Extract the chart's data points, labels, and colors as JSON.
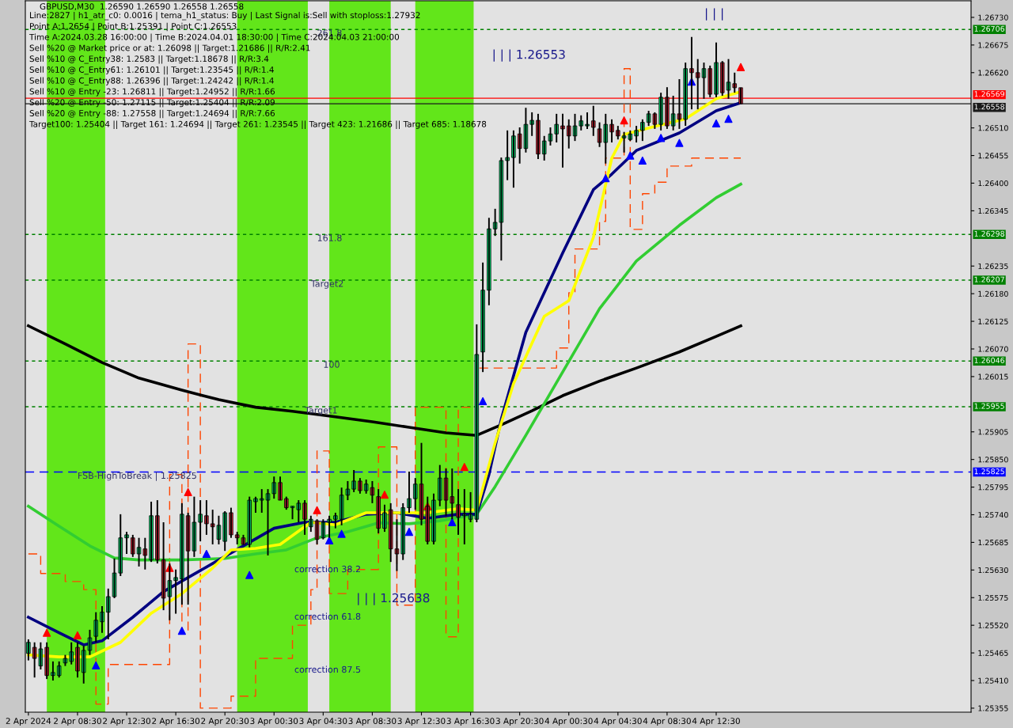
{
  "chart_data": {
    "type": "candlestick",
    "title": "GBPUSD,M30  1.26590 1.26590 1.26558 1.26558",
    "subtitle": "Line:2827 | h1_atr_c0: 0.0016 | tema_h1_status: Buy | Last Signal is:Sell with stoploss:1.27932\nPoint A:1.2654 | Point B:1.25391 | Point C:1.26553\nTime A:2024.03.28 16:00:00 | Time B:2024.04.01 18:30:00 | Time C:2024.04.03 21:00:00\nSell %20 @ Market price or at: 1.26098 || Target:1.21686 || R/R:2.41\nSell %10 @ C_Entry38: 1.2583 || Target:1.18678 || R/R:3.4\nSell %10 @ C_Entry61: 1.26101 || Target:1.23545 || R/R:1.4\nSell %10 @ C_Entry88: 1.26396 || Target:1.24242 || R/R:1.4\nSell %10 @ Entry -23: 1.26811 || Target:1.24952 || R/R:1.66\nSell %20 @ Entry -50: 1.27115 || Target:1.25404 || R/R:2.09\nSell %20 @ Entry -88: 1.27558 || Target:1.24694 || R/R:7.66\nTarget100: 1.25404 || Target 161: 1.24694 || Target 261: 1.23545 || Target 423: 1.21686 || Target 685: 1.18678",
    "x": [
      "2024-04-02T04:30",
      "2024-04-02T05:00",
      "2024-04-02T05:30",
      "2024-04-02T06:00",
      "2024-04-02T06:30",
      "2024-04-02T07:00",
      "2024-04-02T07:30",
      "2024-04-02T08:00",
      "2024-04-02T08:30",
      "2024-04-02T09:00",
      "2024-04-02T09:30",
      "2024-04-02T10:00",
      "2024-04-02T10:30",
      "2024-04-02T11:00",
      "2024-04-02T11:30",
      "2024-04-02T12:00",
      "2024-04-02T12:30",
      "2024-04-02T13:00",
      "2024-04-02T13:30",
      "2024-04-02T14:00",
      "2024-04-02T14:30",
      "2024-04-02T15:00",
      "2024-04-02T15:30",
      "2024-04-02T16:00",
      "2024-04-02T16:30",
      "2024-04-02T17:00",
      "2024-04-02T17:30",
      "2024-04-02T18:00",
      "2024-04-02T18:30",
      "2024-04-02T19:00",
      "2024-04-02T19:30",
      "2024-04-02T20:00",
      "2024-04-02T20:30",
      "2024-04-02T21:00",
      "2024-04-02T21:30",
      "2024-04-02T22:00",
      "2024-04-02T22:30",
      "2024-04-02T23:00",
      "2024-04-02T23:30",
      "2024-04-03T00:00",
      "2024-04-03T00:30",
      "2024-04-03T01:00",
      "2024-04-03T01:30",
      "2024-04-03T02:00",
      "2024-04-03T02:30",
      "2024-04-03T03:00",
      "2024-04-03T03:30",
      "2024-04-03T04:00",
      "2024-04-03T04:30",
      "2024-04-03T05:00",
      "2024-04-03T05:30",
      "2024-04-03T06:00",
      "2024-04-03T06:30",
      "2024-04-03T07:00",
      "2024-04-03T07:30",
      "2024-04-03T08:00",
      "2024-04-03T08:30",
      "2024-04-03T09:00",
      "2024-04-03T09:30",
      "2024-04-03T10:00",
      "2024-04-03T10:30",
      "2024-04-03T11:00",
      "2024-04-03T11:30",
      "2024-04-03T12:00",
      "2024-04-03T12:30",
      "2024-04-03T13:00",
      "2024-04-03T13:30",
      "2024-04-03T14:00",
      "2024-04-03T14:30",
      "2024-04-03T15:00",
      "2024-04-03T15:30",
      "2024-04-03T16:00",
      "2024-04-03T16:30",
      "2024-04-03T17:00",
      "2024-04-03T17:30",
      "2024-04-03T18:00",
      "2024-04-03T18:30",
      "2024-04-03T19:00",
      "2024-04-03T19:30",
      "2024-04-03T20:00",
      "2024-04-03T20:30",
      "2024-04-03T21:00",
      "2024-04-03T21:30",
      "2024-04-03T22:00",
      "2024-04-03T22:30",
      "2024-04-03T23:00",
      "2024-04-03T23:30",
      "2024-04-04T00:00",
      "2024-04-04T00:30",
      "2024-04-04T01:00",
      "2024-04-04T01:30",
      "2024-04-04T02:00",
      "2024-04-04T02:30",
      "2024-04-04T03:00",
      "2024-04-04T03:30",
      "2024-04-04T04:00",
      "2024-04-04T04:30",
      "2024-04-04T05:00",
      "2024-04-04T05:30",
      "2024-04-04T06:00",
      "2024-04-04T06:30",
      "2024-04-04T07:00",
      "2024-04-04T07:30",
      "2024-04-04T08:00",
      "2024-04-04T08:30",
      "2024-04-04T09:00",
      "2024-04-04T09:30",
      "2024-04-04T10:00",
      "2024-04-04T10:30",
      "2024-04-04T11:00",
      "2024-04-04T11:30",
      "2024-04-04T12:00",
      "2024-04-04T12:30",
      "2024-04-04T13:00",
      "2024-04-04T13:30",
      "2024-04-04T14:00",
      "2024-04-04T14:30"
    ],
    "ohlc": [
      [
        1.25464,
        1.25492,
        1.2545,
        1.25486
      ],
      [
        1.25476,
        1.25486,
        1.25416,
        1.25454
      ],
      [
        1.25439,
        1.25486,
        1.25432,
        1.25473
      ],
      [
        1.25476,
        1.25486,
        1.25413,
        1.2542
      ],
      [
        1.2542,
        1.25448,
        1.2541,
        1.25426
      ],
      [
        1.2542,
        1.25448,
        1.25416,
        1.25439
      ],
      [
        1.25445,
        1.25461,
        1.25439,
        1.25454
      ],
      [
        1.25448,
        1.25486,
        1.25442,
        1.25467
      ],
      [
        1.25476,
        1.25486,
        1.25416,
        1.25429
      ],
      [
        1.25426,
        1.25479,
        1.25404,
        1.2547
      ],
      [
        1.2547,
        1.25511,
        1.25461,
        1.25495
      ],
      [
        1.25498,
        1.25546,
        1.25486,
        1.2553
      ],
      [
        1.25527,
        1.25558,
        1.25505,
        1.25546
      ],
      [
        1.25546,
        1.25593,
        1.25492,
        1.25577
      ],
      [
        1.25577,
        1.25653,
        1.25574,
        1.25624
      ],
      [
        1.25624,
        1.25741,
        1.25618,
        1.25694
      ],
      [
        1.25694,
        1.25706,
        1.25662,
        1.257
      ],
      [
        1.25694,
        1.257,
        1.25656,
        1.25662
      ],
      [
        1.25662,
        1.25694,
        1.25637,
        1.25675
      ],
      [
        1.25672,
        1.25694,
        1.25631,
        1.25659
      ],
      [
        1.2565,
        1.25766,
        1.25646,
        1.25738
      ],
      [
        1.25738,
        1.25769,
        1.25643,
        1.2565
      ],
      [
        1.2565,
        1.25725,
        1.2555,
        1.25574
      ],
      [
        1.25577,
        1.25643,
        1.2553,
        1.25609
      ],
      [
        1.25609,
        1.25631,
        1.25543,
        1.25615
      ],
      [
        1.25612,
        1.25763,
        1.25561,
        1.25741
      ],
      [
        1.25738,
        1.25744,
        1.25561,
        1.25668
      ],
      [
        1.25668,
        1.25776,
        1.25656,
        1.25725
      ],
      [
        1.25725,
        1.25769,
        1.25687,
        1.25741
      ],
      [
        1.25738,
        1.25769,
        1.257,
        1.25722
      ],
      [
        1.25722,
        1.2575,
        1.25681,
        1.25716
      ],
      [
        1.25691,
        1.25738,
        1.25681,
        1.25719
      ],
      [
        1.25687,
        1.25747,
        1.25668,
        1.25744
      ],
      [
        1.25744,
        1.25754,
        1.25694,
        1.257
      ],
      [
        1.257,
        1.25706,
        1.25681,
        1.25694
      ],
      [
        1.25694,
        1.257,
        1.25681,
        1.25681
      ],
      [
        1.25681,
        1.25776,
        1.25675,
        1.25769
      ],
      [
        1.25766,
        1.25776,
        1.25744,
        1.25772
      ],
      [
        1.25769,
        1.25791,
        1.25744,
        1.25772
      ],
      [
        1.25769,
        1.25791,
        1.25659,
        1.25782
      ],
      [
        1.25782,
        1.25816,
        1.25772,
        1.25804
      ],
      [
        1.25804,
        1.25816,
        1.25769,
        1.25769
      ],
      [
        1.25772,
        1.25776,
        1.2575,
        1.25754
      ],
      [
        1.25754,
        1.25757,
        1.25731,
        1.25757
      ],
      [
        1.2575,
        1.25769,
        1.25725,
        1.25763
      ],
      [
        1.25763,
        1.25769,
        1.257,
        1.25731
      ],
      [
        1.25716,
        1.25738,
        1.25706,
        1.25731
      ],
      [
        1.25728,
        1.25731,
        1.25681,
        1.25691
      ],
      [
        1.25694,
        1.25731,
        1.25691,
        1.25725
      ],
      [
        1.25725,
        1.25738,
        1.25694,
        1.25731
      ],
      [
        1.25731,
        1.25744,
        1.25713,
        1.25738
      ],
      [
        1.25731,
        1.25794,
        1.25719,
        1.25779
      ],
      [
        1.25779,
        1.25807,
        1.25769,
        1.25791
      ],
      [
        1.25791,
        1.25829,
        1.25785,
        1.25807
      ],
      [
        1.25807,
        1.25813,
        1.25782,
        1.25788
      ],
      [
        1.25788,
        1.2581,
        1.25782,
        1.25801
      ],
      [
        1.25794,
        1.25807,
        1.25763,
        1.25779
      ],
      [
        1.25776,
        1.25791,
        1.25703,
        1.25713
      ],
      [
        1.25713,
        1.2576,
        1.25706,
        1.25744
      ],
      [
        1.2575,
        1.25763,
        1.25646,
        1.25672
      ],
      [
        1.25672,
        1.25731,
        1.25628,
        1.25662
      ],
      [
        1.25662,
        1.25763,
        1.2565,
        1.25754
      ],
      [
        1.25754,
        1.25826,
        1.25744,
        1.25772
      ],
      [
        1.25772,
        1.25813,
        1.2575,
        1.25801
      ],
      [
        1.25801,
        1.25883,
        1.25719,
        1.25731
      ],
      [
        1.25757,
        1.25776,
        1.25681,
        1.25687
      ],
      [
        1.25687,
        1.25782,
        1.25681,
        1.25769
      ],
      [
        1.25769,
        1.25839,
        1.25757,
        1.25813
      ],
      [
        1.25813,
        1.25832,
        1.25738,
        1.25769
      ],
      [
        1.25776,
        1.25832,
        1.25731,
        1.25763
      ],
      [
        1.2576,
        1.25791,
        1.257,
        1.25735
      ],
      [
        1.25738,
        1.25791,
        1.25681,
        1.25741
      ],
      [
        1.25731,
        1.25785,
        1.25725,
        1.25741
      ],
      [
        1.25731,
        1.26119,
        1.25725,
        1.26059
      ],
      [
        1.26064,
        1.26242,
        1.26024,
        1.26187
      ],
      [
        1.26187,
        1.26331,
        1.26157,
        1.26309
      ],
      [
        1.26309,
        1.26349,
        1.26295,
        1.26322
      ],
      [
        1.26322,
        1.26451,
        1.26246,
        1.26445
      ],
      [
        1.26445,
        1.26505,
        1.26406,
        1.26451
      ],
      [
        1.26451,
        1.26505,
        1.26391,
        1.26494
      ],
      [
        1.26498,
        1.26511,
        1.26439,
        1.26469
      ],
      [
        1.26469,
        1.2655,
        1.26461,
        1.26517
      ],
      [
        1.26517,
        1.26541,
        1.26494,
        1.26525
      ],
      [
        1.26525,
        1.26538,
        1.26448,
        1.26458
      ],
      [
        1.26458,
        1.26494,
        1.26445,
        1.26484
      ],
      [
        1.26484,
        1.26511,
        1.26475,
        1.26498
      ],
      [
        1.26498,
        1.26538,
        1.26481,
        1.26517
      ],
      [
        1.26514,
        1.26538,
        1.26431,
        1.26508
      ],
      [
        1.26514,
        1.26527,
        1.26469,
        1.26494
      ],
      [
        1.26494,
        1.26538,
        1.26484,
        1.26514
      ],
      [
        1.26514,
        1.26535,
        1.26505,
        1.26524
      ],
      [
        1.26514,
        1.26541,
        1.26508,
        1.26517
      ],
      [
        1.26524,
        1.26554,
        1.26494,
        1.26511
      ],
      [
        1.26508,
        1.26521,
        1.26472,
        1.26481
      ],
      [
        1.26481,
        1.26538,
        1.26439,
        1.26517
      ],
      [
        1.26517,
        1.26527,
        1.26481,
        1.26502
      ],
      [
        1.26505,
        1.26514,
        1.26487,
        1.26494
      ],
      [
        1.2649,
        1.26502,
        1.26461,
        1.26494
      ],
      [
        1.26487,
        1.26505,
        1.26484,
        1.26498
      ],
      [
        1.26494,
        1.26514,
        1.26481,
        1.26505
      ],
      [
        1.26505,
        1.26527,
        1.26484,
        1.26521
      ],
      [
        1.26521,
        1.26544,
        1.26514,
        1.26538
      ],
      [
        1.26538,
        1.26541,
        1.26508,
        1.26517
      ],
      [
        1.26517,
        1.2658,
        1.26505,
        1.26571
      ],
      [
        1.26571,
        1.26591,
        1.26508,
        1.26514
      ],
      [
        1.26514,
        1.26574,
        1.26505,
        1.26538
      ],
      [
        1.26538,
        1.26607,
        1.26508,
        1.26527
      ],
      [
        1.26527,
        1.2664,
        1.26514,
        1.26628
      ],
      [
        1.26628,
        1.26691,
        1.26547,
        1.2662
      ],
      [
        1.2662,
        1.26647,
        1.26547,
        1.2661
      ],
      [
        1.2661,
        1.2664,
        1.26568,
        1.26628
      ],
      [
        1.26628,
        1.26634,
        1.26571,
        1.26577
      ],
      [
        1.26577,
        1.2668,
        1.26571,
        1.2664
      ],
      [
        1.2664,
        1.26643,
        1.26574,
        1.2658
      ],
      [
        1.26585,
        1.26647,
        1.26568,
        1.26601
      ],
      [
        1.26598,
        1.2662,
        1.2658,
        1.2659
      ],
      [
        1.2659,
        1.2659,
        1.26558,
        1.26558
      ]
    ],
    "series": [
      {
        "type": "line",
        "color": "#000000",
        "x": [
          "2024-04-02T04:30",
          "2024-04-02T07:30",
          "2024-04-02T10:30",
          "2024-04-02T13:30",
          "2024-04-02T17:00",
          "2024-04-02T20:00",
          "2024-04-02T23:00",
          "2024-04-03T02:00",
          "2024-04-03T05:30",
          "2024-04-03T08:30",
          "2024-04-03T11:30",
          "2024-04-03T14:30",
          "2024-04-03T17:00",
          "2024-04-03T19:00",
          "2024-04-03T21:30",
          "2024-04-04T00:00",
          "2024-04-04T03:00",
          "2024-04-04T06:00",
          "2024-04-04T09:30",
          "2024-04-04T12:30",
          "2024-04-04T14:30"
        ],
        "values": [
          1.26116,
          1.2608,
          1.26043,
          1.26012,
          1.25988,
          1.25969,
          1.25954,
          1.25946,
          1.25935,
          1.25925,
          1.25914,
          1.25903,
          1.25898,
          1.25919,
          1.25947,
          1.25977,
          1.26006,
          1.26032,
          1.26064,
          1.26095,
          1.26116
        ]
      },
      {
        "type": "line",
        "color": "#32cd32",
        "x": [
          "2024-04-02T04:30",
          "2024-04-02T07:00",
          "2024-04-02T09:30",
          "2024-04-02T11:30",
          "2024-04-02T13:30",
          "2024-04-02T17:00",
          "2024-04-02T20:30",
          "2024-04-02T23:00",
          "2024-04-03T01:30",
          "2024-04-03T04:00",
          "2024-04-03T06:30",
          "2024-04-03T09:00",
          "2024-04-03T11:30",
          "2024-04-03T14:00",
          "2024-04-03T17:00",
          "2024-04-03T18:30",
          "2024-04-03T21:00",
          "2024-04-04T00:00",
          "2024-04-04T03:00",
          "2024-04-04T06:00",
          "2024-04-04T09:30",
          "2024-04-04T12:30",
          "2024-04-04T14:30"
        ],
        "values": [
          1.25757,
          1.25717,
          1.25678,
          1.25654,
          1.2565,
          1.2565,
          1.25653,
          1.25662,
          1.2567,
          1.25694,
          1.25706,
          1.25724,
          1.25722,
          1.25728,
          1.25741,
          1.25796,
          1.25898,
          1.26024,
          1.2615,
          1.26245,
          1.26316,
          1.26371,
          1.26398
        ]
      },
      {
        "type": "line",
        "color": "#000080",
        "x": [
          "2024-04-02T04:30",
          "2024-04-02T07:00",
          "2024-04-02T09:00",
          "2024-04-02T10:30",
          "2024-04-02T13:00",
          "2024-04-02T15:30",
          "2024-04-02T17:30",
          "2024-04-02T19:30",
          "2024-04-02T22:00",
          "2024-04-03T00:30",
          "2024-04-03T03:00",
          "2024-04-03T05:30",
          "2024-04-03T08:00",
          "2024-04-03T10:30",
          "2024-04-03T13:00",
          "2024-04-03T15:30",
          "2024-04-03T17:00",
          "2024-04-03T18:00",
          "2024-04-03T19:00",
          "2024-04-03T21:00",
          "2024-04-04T00:00",
          "2024-04-04T02:30",
          "2024-04-04T04:00",
          "2024-04-04T06:00",
          "2024-04-04T09:30",
          "2024-04-04T12:30",
          "2024-04-04T14:30"
        ],
        "values": [
          1.25536,
          1.25505,
          1.25481,
          1.25489,
          1.25536,
          1.25587,
          1.25615,
          1.25643,
          1.25678,
          1.25713,
          1.25725,
          1.25725,
          1.25741,
          1.25744,
          1.25733,
          1.25741,
          1.25741,
          1.2582,
          1.2593,
          1.26103,
          1.26261,
          1.26387,
          1.26418,
          1.26465,
          1.265,
          1.26544,
          1.2656
        ]
      },
      {
        "type": "line",
        "color": "#ffff00",
        "x": [
          "2024-04-02T04:30",
          "2024-04-02T07:00",
          "2024-04-02T09:30",
          "2024-04-02T12:00",
          "2024-04-02T14:30",
          "2024-04-02T17:00",
          "2024-04-02T19:30",
          "2024-04-02T21:00",
          "2024-04-02T23:00",
          "2024-04-03T01:00",
          "2024-04-03T03:30",
          "2024-04-03T05:30",
          "2024-04-03T08:00",
          "2024-04-03T13:00",
          "2024-04-03T15:30",
          "2024-04-03T17:00",
          "2024-04-03T18:30",
          "2024-04-03T20:00",
          "2024-04-03T22:30",
          "2024-04-04T00:30",
          "2024-04-04T02:30",
          "2024-04-04T04:00",
          "2024-04-04T05:00",
          "2024-04-04T07:30",
          "2024-04-04T10:00",
          "2024-04-04T12:30",
          "2024-04-04T14:30"
        ],
        "values": [
          1.25461,
          1.25457,
          1.25457,
          1.25486,
          1.25544,
          1.25583,
          1.25634,
          1.2567,
          1.25673,
          1.25681,
          1.25725,
          1.2572,
          1.25744,
          1.25744,
          1.25752,
          1.25749,
          1.25883,
          1.26001,
          1.26135,
          1.26166,
          1.26292,
          1.2645,
          1.26497,
          1.26513,
          1.26528,
          1.26568,
          1.26582
        ]
      },
      {
        "type": "step",
        "color": "#ff4500",
        "line_style": "dashed",
        "x": [
          "2024-04-02T04:30",
          "2024-04-02T05:30",
          "2024-04-02T07:30",
          "2024-04-02T09:00",
          "2024-04-02T10:00",
          "2024-04-02T11:00",
          "2024-04-02T15:30",
          "2024-04-02T16:00",
          "2024-04-02T17:00",
          "2024-04-02T17:30",
          "2024-04-02T18:30",
          "2024-04-02T21:00",
          "2024-04-02T23:00",
          "2024-04-03T02:00",
          "2024-04-03T03:30",
          "2024-04-03T04:00",
          "2024-04-03T05:00",
          "2024-04-03T06:30",
          "2024-04-03T09:00",
          "2024-04-03T10:30",
          "2024-04-03T12:00",
          "2024-04-03T14:30",
          "2024-04-03T15:30",
          "2024-04-03T17:00",
          "2024-04-03T23:30",
          "2024-04-04T00:30",
          "2024-04-04T01:00",
          "2024-04-04T03:00",
          "2024-04-04T03:30",
          "2024-04-04T05:00",
          "2024-04-04T05:30",
          "2024-04-04T06:30",
          "2024-04-04T07:30",
          "2024-04-04T08:30",
          "2024-04-04T10:30",
          "2024-04-04T14:30"
        ],
        "values": [
          1.25662,
          1.25623,
          1.25607,
          1.25591,
          1.25363,
          1.25442,
          1.25442,
          1.2582,
          1.25505,
          1.2608,
          1.25355,
          1.25379,
          1.25454,
          1.2552,
          1.25591,
          1.25867,
          1.25583,
          1.25631,
          1.25875,
          1.2556,
          1.25954,
          1.25497,
          1.25954,
          1.26032,
          1.26072,
          1.26182,
          1.26269,
          1.26324,
          1.2645,
          1.26628,
          1.26308,
          1.26379,
          1.26402,
          1.26434,
          1.2645,
          1.2645
        ]
      },
      {
        "type": "scatter",
        "color": "#ff0000",
        "marker": "triangle",
        "x": [
          "2024-04-02T06:00",
          "2024-04-02T08:30",
          "2024-04-02T16:00",
          "2024-04-02T17:30",
          "2024-04-03T04:00",
          "2024-04-03T09:30",
          "2024-04-03T13:00",
          "2024-04-03T16:00",
          "2024-04-04T05:00",
          "2024-04-04T14:30"
        ],
        "values": [
          1.25505,
          1.255,
          1.25634,
          1.25785,
          1.25749,
          1.2578,
          1.25757,
          1.25835,
          1.26525,
          1.26631
        ]
      },
      {
        "type": "scatter",
        "color": "#0000ff",
        "marker": "triangle",
        "x": [
          "2024-04-02T10:00",
          "2024-04-02T17:00",
          "2024-04-02T19:00",
          "2024-04-02T22:30",
          "2024-04-03T05:00",
          "2024-04-03T06:00",
          "2024-04-03T11:30",
          "2024-04-03T15:00",
          "2024-04-03T17:30",
          "2024-04-04T03:30",
          "2024-04-04T05:30",
          "2024-04-04T06:30",
          "2024-04-04T08:00",
          "2024-04-04T09:30",
          "2024-04-04T10:30",
          "2024-04-04T12:30",
          "2024-04-04T13:30"
        ],
        "values": [
          1.2544,
          1.25509,
          1.25662,
          1.2562,
          1.25689,
          1.25702,
          1.25706,
          1.25725,
          1.25966,
          1.2641,
          1.26455,
          1.26445,
          1.2649,
          1.2648,
          1.26602,
          1.26519,
          1.26528
        ]
      }
    ],
    "bands": [
      {
        "axis": "x",
        "from": "2024-04-02T06:00",
        "to": "2024-04-02T10:45",
        "color": "#62e61a"
      },
      {
        "axis": "x",
        "from": "2024-04-02T21:30",
        "to": "2024-04-03T03:15",
        "color": "#62e61a"
      },
      {
        "axis": "x",
        "from": "2024-04-03T05:00",
        "to": "2024-04-03T10:00",
        "color": "#62e61a"
      },
      {
        "axis": "x",
        "from": "2024-04-03T12:00",
        "to": "2024-04-03T16:45",
        "color": "#62e61a"
      }
    ],
    "ref_lines": [
      {
        "axis": "y",
        "value": 1.26706,
        "label": "1.26706",
        "color": "#008000",
        "line_style": "dotted"
      },
      {
        "axis": "y",
        "value": 1.26569,
        "label": "1.26569",
        "color": "#ff0000",
        "line_style": "solid"
      },
      {
        "axis": "y",
        "value": 1.26558,
        "label": "1.26558",
        "color": "#1a1a1a",
        "line_style": "solid"
      },
      {
        "axis": "y",
        "value": 1.26298,
        "label": "1.26298",
        "color": "#008000",
        "line_style": "dotted"
      },
      {
        "axis": "y",
        "value": 1.26207,
        "label": "1.26207",
        "color": "#008000",
        "line_style": "dotted"
      },
      {
        "axis": "y",
        "value": 1.26046,
        "label": "1.26046",
        "color": "#008000",
        "line_style": "dotted"
      },
      {
        "axis": "y",
        "value": 1.25955,
        "label": "1.25955",
        "color": "#008000",
        "line_style": "dotted"
      },
      {
        "axis": "y",
        "value": 1.25825,
        "label": "1.25825",
        "color": "#0000ff",
        "line_style": "dashed"
      }
    ],
    "annotations": [
      "| | | 1.26553",
      "| | | 1.25638",
      "| | |",
      "correction 38.2",
      "correction 61.8",
      "correction 87.5",
      {
        "text": "FSB-HighToBreak | 1.25825",
        "x": "2024-04-02T08:30",
        "y": 1.25825
      },
      {
        "text": "261.8",
        "x": "2024-04-03T04:00",
        "y": 1.26706
      },
      {
        "text": "161.8",
        "x": "2024-04-03T04:00",
        "y": 1.26298
      },
      {
        "text": "Target2",
        "x": "2024-04-03T03:30",
        "y": 1.26207
      },
      {
        "text": "100",
        "x": "2024-04-03T04:30",
        "y": 1.26046
      },
      {
        "text": "Target1",
        "x": "2024-04-03T03:00",
        "y": 1.25955
      }
    ],
    "xlim": [
      "2024-04-02T04:15",
      "2024-04-05T09:15"
    ],
    "xticks": [
      {
        "value": "2024-04-02T04:30",
        "label": "2 Apr 2024"
      },
      {
        "value": "2024-04-02T08:30",
        "label": "2 Apr 08:30"
      },
      {
        "value": "2024-04-02T12:30",
        "label": "2 Apr 12:30"
      },
      {
        "value": "2024-04-02T16:30",
        "label": "2 Apr 16:30"
      },
      {
        "value": "2024-04-02T20:30",
        "label": "2 Apr 20:30"
      },
      {
        "value": "2024-04-03T00:30",
        "label": "3 Apr 00:30"
      },
      {
        "value": "2024-04-03T04:30",
        "label": "3 Apr 04:30"
      },
      {
        "value": "2024-04-03T08:30",
        "label": "3 Apr 08:30"
      },
      {
        "value": "2024-04-03T12:30",
        "label": "3 Apr 12:30"
      },
      {
        "value": "2024-04-03T16:30",
        "label": "3 Apr 16:30"
      },
      {
        "value": "2024-04-03T20:30",
        "label": "3 Apr 20:30"
      },
      {
        "value": "2024-04-04T00:30",
        "label": "4 Apr 00:30"
      },
      {
        "value": "2024-04-04T04:30",
        "label": "4 Apr 04:30"
      },
      {
        "value": "2024-04-04T08:30",
        "label": "4 Apr 08:30"
      },
      {
        "value": "2024-04-04T12:30",
        "label": "4 Apr 12:30"
      }
    ],
    "ylim": [
      1.25347,
      1.26763
    ],
    "yticks": [
      1.25355,
      {
        "value": 1.2541,
        "label": "1.25410"
      },
      1.25465,
      {
        "value": 1.2552,
        "label": "1.25520"
      },
      1.25575,
      {
        "value": 1.2563,
        "label": "1.25630"
      },
      1.25685,
      {
        "value": 1.2574,
        "label": "1.25740"
      },
      1.25795,
      {
        "value": 1.2585,
        "label": "1.25850"
      },
      1.25905,
      1.26015,
      {
        "value": 1.2607,
        "label": "1.26070"
      },
      1.26125,
      {
        "value": 1.2618,
        "label": "1.26180"
      },
      1.26235,
      1.26345,
      {
        "value": 1.264,
        "label": "1.26400"
      },
      1.26455,
      {
        "value": 1.2651,
        "label": "1.26510"
      },
      {
        "value": 1.2662,
        "label": "1.26620"
      },
      1.26675,
      {
        "value": 1.2673,
        "label": "1.26730"
      }
    ],
    "grid": false,
    "legend": false
  }
}
